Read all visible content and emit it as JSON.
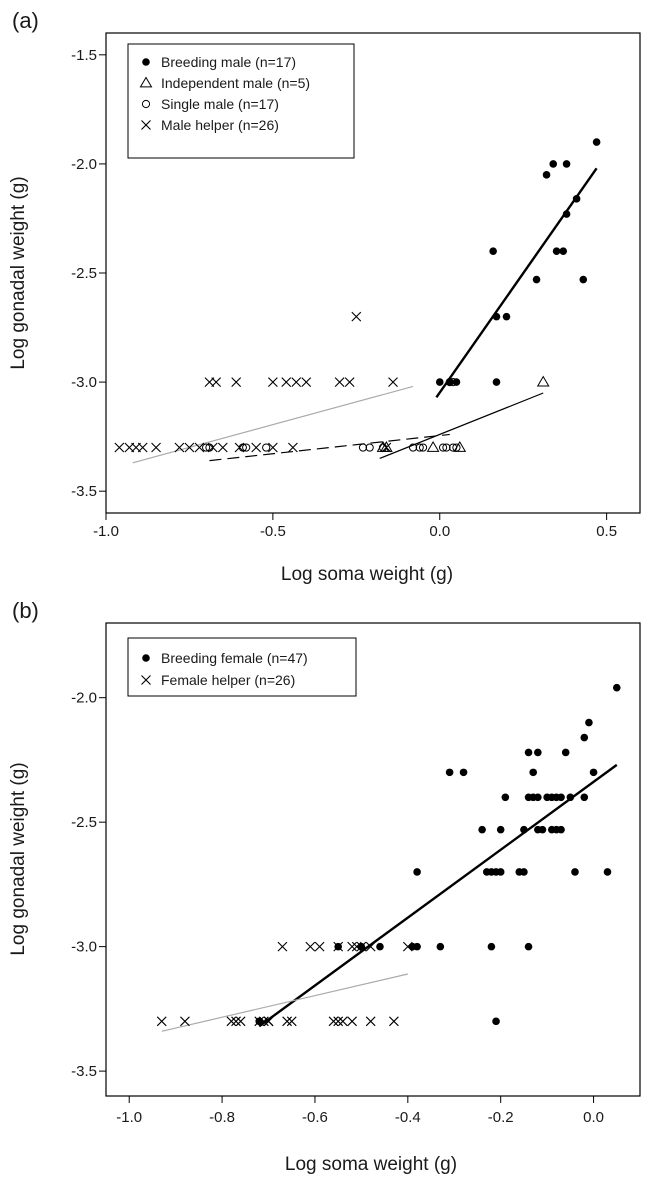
{
  "chart_data": [
    {
      "type": "scatter",
      "panel_label": "(a)",
      "xlabel": "Log soma weight (g)",
      "ylabel": "Log gonadal weight (g)",
      "xlim": [
        -1.0,
        0.6
      ],
      "ylim": [
        -3.6,
        -1.4
      ],
      "xticks": [
        -1.0,
        -0.5,
        0.0,
        0.5
      ],
      "yticks": [
        -3.5,
        -3.0,
        -2.5,
        -2.0,
        -1.5
      ],
      "xtick_labels": [
        "-1.0",
        "-0.5",
        "0.0",
        "0.5"
      ],
      "ytick_labels": [
        "-3.5",
        "-3.0",
        "-2.5",
        "-2.0",
        "-1.5"
      ],
      "grid": false,
      "legend_position": "top-left",
      "series": [
        {
          "name": "Breeding male (n=17)",
          "marker": "filled-circle",
          "points": [
            [
              0.0,
              -3.0
            ],
            [
              0.05,
              -3.0
            ],
            [
              0.16,
              -2.4
            ],
            [
              0.17,
              -2.7
            ],
            [
              0.17,
              -3.0
            ],
            [
              0.2,
              -2.7
            ],
            [
              0.29,
              -2.53
            ],
            [
              0.32,
              -2.05
            ],
            [
              0.34,
              -2.0
            ],
            [
              0.35,
              -2.4
            ],
            [
              0.37,
              -2.4
            ],
            [
              0.38,
              -2.23
            ],
            [
              0.38,
              -2.0
            ],
            [
              0.41,
              -2.16
            ],
            [
              0.43,
              -2.53
            ],
            [
              0.47,
              -1.9
            ],
            [
              0.03,
              -3.0
            ]
          ]
        },
        {
          "name": "Independent male (n=5)",
          "marker": "open-triangle",
          "points": [
            [
              -0.17,
              -3.3
            ],
            [
              -0.16,
              -3.3
            ],
            [
              -0.02,
              -3.3
            ],
            [
              0.06,
              -3.3
            ],
            [
              0.31,
              -3.0
            ]
          ]
        },
        {
          "name": "Single male (n=17)",
          "marker": "open-circle",
          "points": [
            [
              -0.23,
              -3.3
            ],
            [
              -0.21,
              -3.3
            ],
            [
              -0.17,
              -3.3
            ],
            [
              -0.08,
              -3.3
            ],
            [
              -0.06,
              -3.3
            ],
            [
              -0.05,
              -3.3
            ],
            [
              0.01,
              -3.3
            ],
            [
              0.02,
              -3.3
            ],
            [
              0.04,
              -3.3
            ],
            [
              0.05,
              -3.3
            ],
            [
              -0.7,
              -3.3
            ],
            [
              -0.69,
              -3.3
            ],
            [
              -0.59,
              -3.3
            ],
            [
              -0.58,
              -3.3
            ],
            [
              -0.52,
              -3.3
            ],
            [
              0.03,
              -3.0
            ],
            [
              0.04,
              -3.0
            ]
          ]
        },
        {
          "name": "Male helper (n=26)",
          "marker": "cross",
          "points": [
            [
              -0.96,
              -3.3
            ],
            [
              -0.93,
              -3.3
            ],
            [
              -0.91,
              -3.3
            ],
            [
              -0.89,
              -3.3
            ],
            [
              -0.85,
              -3.3
            ],
            [
              -0.78,
              -3.3
            ],
            [
              -0.75,
              -3.3
            ],
            [
              -0.72,
              -3.3
            ],
            [
              -0.68,
              -3.3
            ],
            [
              -0.65,
              -3.3
            ],
            [
              -0.6,
              -3.3
            ],
            [
              -0.55,
              -3.3
            ],
            [
              -0.5,
              -3.3
            ],
            [
              -0.44,
              -3.3
            ],
            [
              -0.16,
              -3.3
            ],
            [
              -0.69,
              -3.0
            ],
            [
              -0.67,
              -3.0
            ],
            [
              -0.61,
              -3.0
            ],
            [
              -0.5,
              -3.0
            ],
            [
              -0.46,
              -3.0
            ],
            [
              -0.43,
              -3.0
            ],
            [
              -0.4,
              -3.0
            ],
            [
              -0.3,
              -3.0
            ],
            [
              -0.27,
              -3.0
            ],
            [
              -0.14,
              -3.0
            ],
            [
              -0.25,
              -2.7
            ]
          ]
        }
      ],
      "fit_lines": [
        {
          "series": "Breeding male (n=17)",
          "style": "solid-thick",
          "color": "#000000",
          "x": [
            -0.01,
            0.47
          ],
          "y": [
            -3.07,
            -2.02
          ]
        },
        {
          "series": "Male helper (n=26)",
          "style": "solid-thin",
          "color": "#aaaaaa",
          "x": [
            -0.92,
            -0.08
          ],
          "y": [
            -3.37,
            -3.02
          ]
        },
        {
          "series": "Single male (n=17)",
          "style": "dashed",
          "color": "#000000",
          "x": [
            -0.69,
            0.03
          ],
          "y": [
            -3.36,
            -3.24
          ]
        },
        {
          "series": "Independent male (n=5)",
          "style": "solid-thin",
          "color": "#000000",
          "x": [
            -0.18,
            0.31
          ],
          "y": [
            -3.35,
            -3.05
          ]
        }
      ]
    },
    {
      "type": "scatter",
      "panel_label": "(b)",
      "xlabel": "Log soma weight (g)",
      "ylabel": "Log gonadal weight (g)",
      "xlim": [
        -1.05,
        0.1
      ],
      "ylim": [
        -3.6,
        -1.7
      ],
      "xticks": [
        -1.0,
        -0.8,
        -0.6,
        -0.4,
        -0.2,
        0.0
      ],
      "yticks": [
        -3.5,
        -3.0,
        -2.5,
        -2.0
      ],
      "xtick_labels": [
        "-1.0",
        "-0.8",
        "-0.6",
        "-0.4",
        "-0.2",
        "0.0"
      ],
      "ytick_labels": [
        "-3.5",
        "-3.0",
        "-2.5",
        "-2.0"
      ],
      "grid": false,
      "legend_position": "top-left",
      "series": [
        {
          "name": "Breeding female (n=47)",
          "marker": "filled-circle",
          "points": [
            [
              -0.72,
              -3.3
            ],
            [
              -0.55,
              -3.0
            ],
            [
              -0.5,
              -3.0
            ],
            [
              -0.46,
              -3.0
            ],
            [
              -0.39,
              -3.0
            ],
            [
              -0.38,
              -3.0
            ],
            [
              -0.33,
              -3.0
            ],
            [
              -0.22,
              -3.0
            ],
            [
              -0.14,
              -3.0
            ],
            [
              -0.21,
              -3.3
            ],
            [
              -0.38,
              -2.7
            ],
            [
              -0.31,
              -2.3
            ],
            [
              -0.28,
              -2.3
            ],
            [
              -0.24,
              -2.53
            ],
            [
              -0.23,
              -2.7
            ],
            [
              -0.21,
              -2.7
            ],
            [
              -0.2,
              -2.7
            ],
            [
              -0.19,
              -2.4
            ],
            [
              -0.2,
              -2.53
            ],
            [
              -0.16,
              -2.7
            ],
            [
              -0.15,
              -2.7
            ],
            [
              -0.15,
              -2.53
            ],
            [
              -0.14,
              -2.4
            ],
            [
              -0.14,
              -2.22
            ],
            [
              -0.13,
              -2.3
            ],
            [
              -0.12,
              -2.22
            ],
            [
              -0.12,
              -2.4
            ],
            [
              -0.11,
              -2.53
            ],
            [
              -0.1,
              -2.4
            ],
            [
              -0.09,
              -2.4
            ],
            [
              -0.08,
              -2.53
            ],
            [
              -0.08,
              -2.4
            ],
            [
              -0.07,
              -2.4
            ],
            [
              -0.07,
              -2.53
            ],
            [
              -0.06,
              -2.22
            ],
            [
              -0.05,
              -2.4
            ],
            [
              -0.04,
              -2.7
            ],
            [
              -0.02,
              -2.4
            ],
            [
              -0.02,
              -2.16
            ],
            [
              -0.01,
              -2.1
            ],
            [
              0.0,
              -2.3
            ],
            [
              0.03,
              -2.7
            ],
            [
              0.05,
              -1.96
            ],
            [
              -0.22,
              -2.7
            ],
            [
              -0.09,
              -2.53
            ],
            [
              -0.12,
              -2.53
            ],
            [
              -0.13,
              -2.4
            ]
          ]
        },
        {
          "name": "Female helper (n=26)",
          "marker": "cross",
          "points": [
            [
              -0.93,
              -3.3
            ],
            [
              -0.88,
              -3.3
            ],
            [
              -0.78,
              -3.3
            ],
            [
              -0.77,
              -3.3
            ],
            [
              -0.76,
              -3.3
            ],
            [
              -0.72,
              -3.3
            ],
            [
              -0.71,
              -3.3
            ],
            [
              -0.7,
              -3.3
            ],
            [
              -0.66,
              -3.3
            ],
            [
              -0.65,
              -3.3
            ],
            [
              -0.56,
              -3.3
            ],
            [
              -0.55,
              -3.3
            ],
            [
              -0.54,
              -3.3
            ],
            [
              -0.52,
              -3.3
            ],
            [
              -0.48,
              -3.3
            ],
            [
              -0.43,
              -3.3
            ],
            [
              -0.67,
              -3.0
            ],
            [
              -0.61,
              -3.0
            ],
            [
              -0.59,
              -3.0
            ],
            [
              -0.55,
              -3.0
            ],
            [
              -0.52,
              -3.0
            ],
            [
              -0.51,
              -3.0
            ],
            [
              -0.5,
              -3.0
            ],
            [
              -0.48,
              -3.0
            ],
            [
              -0.4,
              -3.0
            ],
            [
              -0.7,
              -3.3
            ]
          ]
        }
      ],
      "fit_lines": [
        {
          "series": "Breeding female (n=47)",
          "style": "solid-thick",
          "color": "#000000",
          "x": [
            -0.72,
            0.05
          ],
          "y": [
            -3.32,
            -2.27
          ]
        },
        {
          "series": "Female helper (n=26)",
          "style": "solid-thin",
          "color": "#aaaaaa",
          "x": [
            -0.93,
            -0.4
          ],
          "y": [
            -3.34,
            -3.11
          ]
        }
      ]
    }
  ]
}
